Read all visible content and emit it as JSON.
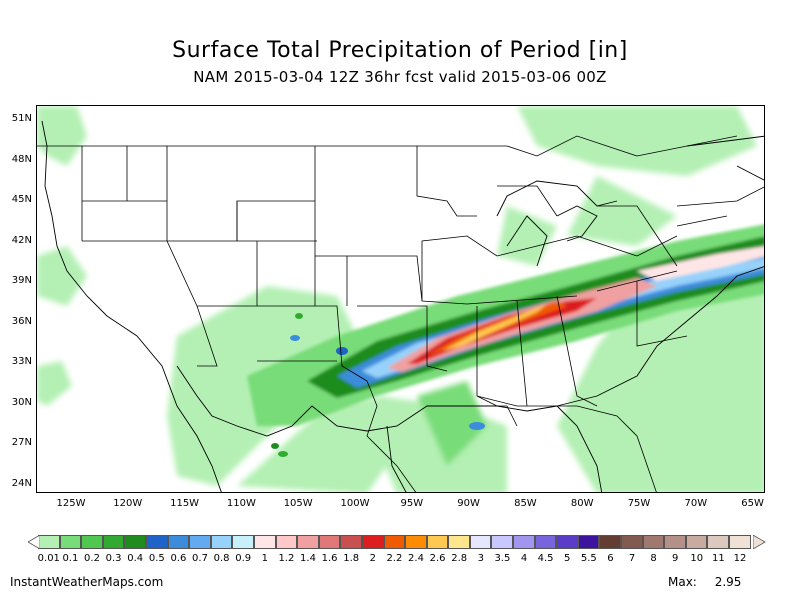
{
  "header": {
    "title": "Surface Total Precipitation of Period [in]",
    "subtitle": "NAM 2015-03-04 12Z 36hr fcst valid 2015-03-06 00Z"
  },
  "map": {
    "lat_labels": [
      "51N",
      "48N",
      "45N",
      "42N",
      "39N",
      "36N",
      "33N",
      "30N",
      "27N",
      "24N"
    ],
    "lon_labels": [
      "125W",
      "120W",
      "115W",
      "110W",
      "105W",
      "100W",
      "95W",
      "90W",
      "85W",
      "80W",
      "75W",
      "70W",
      "65W"
    ]
  },
  "legend": {
    "labels": [
      "0.01",
      "0.1",
      "0.2",
      "0.3",
      "0.4",
      "0.5",
      "0.6",
      "0.7",
      "0.8",
      "0.9",
      "1",
      "1.2",
      "1.4",
      "1.6",
      "1.8",
      "2",
      "2.2",
      "2.4",
      "2.6",
      "2.8",
      "3",
      "3.5",
      "4",
      "4.5",
      "5",
      "5.5",
      "6",
      "7",
      "8",
      "9",
      "10",
      "11",
      "12"
    ],
    "colors": [
      "#b4f0b4",
      "#78dc78",
      "#50c850",
      "#32aa32",
      "#1e8c1e",
      "#1e64c8",
      "#3c8cdc",
      "#64aaf0",
      "#96d2fa",
      "#c8f0fa",
      "#ffe6e6",
      "#ffc8c8",
      "#f0a0a0",
      "#e07878",
      "#c85050",
      "#dc1e1e",
      "#f05a00",
      "#ff8c00",
      "#ffc850",
      "#ffe68c",
      "#e6e6ff",
      "#c8c8ff",
      "#a096f0",
      "#7864dc",
      "#5a3cc8",
      "#3c14a0",
      "#643c32",
      "#825a50",
      "#a07870",
      "#b49088",
      "#c8aaa0",
      "#dcc8be",
      "#f0e1d7"
    ]
  },
  "footer": {
    "website": "InstantWeatherMaps.com",
    "max_label": "Max:",
    "max_value": "2.95"
  }
}
